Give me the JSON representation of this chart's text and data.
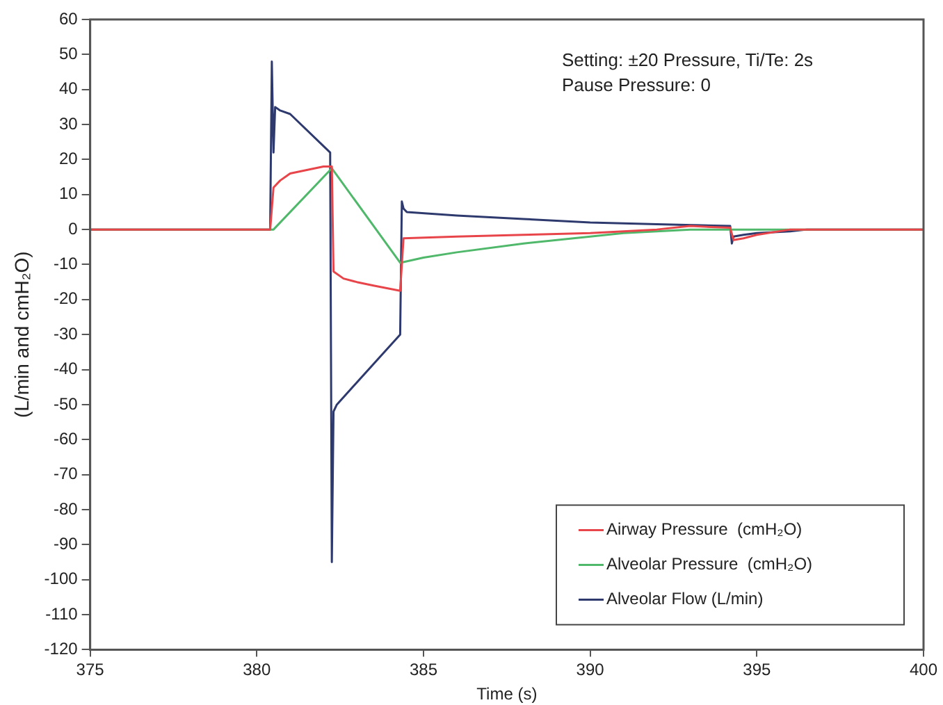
{
  "chart_data": {
    "type": "line",
    "xlabel": "Time (s)",
    "ylabel": "(L/min and cmH₂O)",
    "annotations": [
      "Setting: ±20 Pressure, Ti/Te: 2s",
      "Pause Pressure: 0"
    ],
    "xlim": [
      375,
      400
    ],
    "xticks": [
      375,
      380,
      385,
      390,
      395,
      400
    ],
    "ylim": [
      -120,
      60
    ],
    "yticks": [
      -120,
      -110,
      -100,
      -90,
      -80,
      -70,
      -60,
      -50,
      -40,
      -30,
      -20,
      -10,
      0,
      10,
      20,
      30,
      40,
      50,
      60
    ],
    "grid": false,
    "legend": "bottom right",
    "marker": "none",
    "line_style": "solid",
    "series": [
      {
        "name": "Airway Pressure  (cmH₂O)",
        "color": "#e8454a",
        "x": [
          375,
          380.4,
          380.5,
          380.7,
          381,
          381.5,
          382,
          382.25,
          382.3,
          382.6,
          383,
          383.5,
          384.3,
          384.4,
          386,
          388,
          390,
          392,
          393,
          394.2,
          394.3,
          394.6,
          395,
          396,
          400
        ],
        "values": [
          0,
          0,
          12,
          14,
          16,
          17,
          18,
          18,
          -12,
          -14,
          -15,
          -16,
          -17.5,
          -2.5,
          -2,
          -1.5,
          -1,
          0,
          1,
          0.5,
          -3,
          -2.5,
          -1.5,
          0,
          0
        ]
      },
      {
        "name": "Alveolar Pressure  (cmH₂O)",
        "color": "#4fb86a",
        "x": [
          375,
          380.5,
          382.25,
          384.3,
          385,
          386,
          388,
          390,
          391,
          393,
          400
        ],
        "values": [
          0,
          0,
          17.5,
          -9.5,
          -8,
          -6.5,
          -4,
          -2,
          -1,
          0,
          0
        ]
      },
      {
        "name": "Alveolar Flow (L/min)",
        "color": "#2e3a6e",
        "x": [
          375,
          380.4,
          380.45,
          380.5,
          380.55,
          380.7,
          381,
          382.2,
          382.25,
          382.3,
          382.4,
          384.3,
          384.35,
          384.4,
          384.5,
          386,
          388,
          390,
          392,
          394.2,
          394.25,
          394.3,
          394.6,
          395,
          396,
          396.5,
          400
        ],
        "values": [
          0,
          0,
          48,
          22,
          35,
          34,
          33,
          22,
          -95,
          -52,
          -50,
          -30,
          8,
          6,
          5,
          4,
          3,
          2,
          1.5,
          1,
          -4,
          -2,
          -1.5,
          -1,
          -0.5,
          0,
          0
        ]
      }
    ]
  }
}
